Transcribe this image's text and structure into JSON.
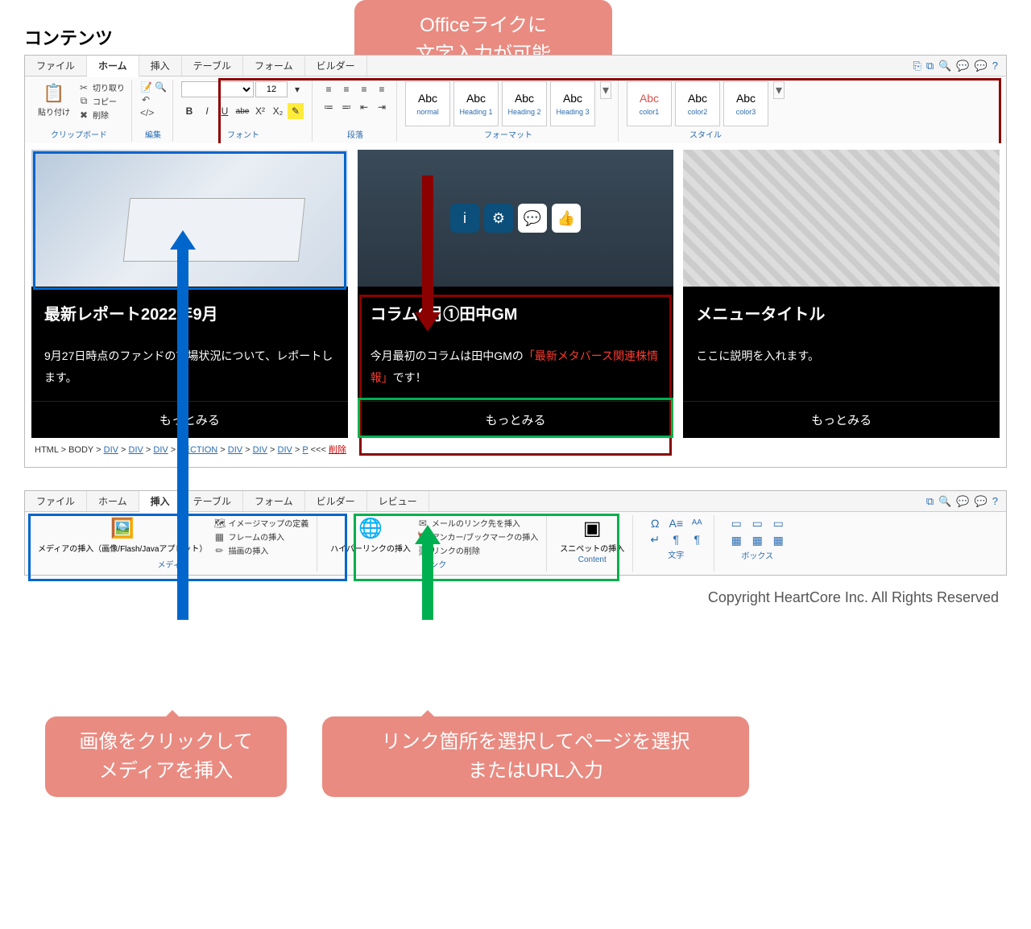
{
  "colors": {
    "red": "#8b0000",
    "blue": "#0066cc",
    "green": "#00b050",
    "callout": "#e98b81",
    "link": "#2b6cb0"
  },
  "section_title": "コンテンツ",
  "ribbon1": {
    "tabs": [
      "ファイル",
      "ホーム",
      "挿入",
      "テーブル",
      "フォーム",
      "ビルダー"
    ],
    "active_tab": 1,
    "clipboard": {
      "paste": "貼り付け",
      "cut": "切り取り",
      "copy": "コピー",
      "delete": "削除",
      "label": "クリップボード"
    },
    "edit": {
      "label": "編集"
    },
    "font": {
      "size": "12",
      "label": "フォント",
      "buttons": [
        "B",
        "I",
        "U",
        "abe",
        "X²",
        "X₂",
        "✎"
      ]
    },
    "paragraph": {
      "label": "段落"
    },
    "format": {
      "label": "フォーマット",
      "items": [
        {
          "abc": "Abc",
          "lbl": "normal"
        },
        {
          "abc": "Abc",
          "lbl": "Heading 1"
        },
        {
          "abc": "Abc",
          "lbl": "Heading 2"
        },
        {
          "abc": "Abc",
          "lbl": "Heading 3"
        }
      ]
    },
    "style": {
      "label": "スタイル",
      "items": [
        {
          "abc": "Abc",
          "lbl": "color1",
          "color": "#d9534f"
        },
        {
          "abc": "Abc",
          "lbl": "color2",
          "color": "#333"
        },
        {
          "abc": "Abc",
          "lbl": "color3",
          "color": "#333"
        }
      ]
    }
  },
  "cards": [
    {
      "title": "最新レポート2022年9月",
      "desc_pre": "9月27日時点のファンドの市場状況について、レポートします。",
      "cta": "もっとみる"
    },
    {
      "title": "コラム9月①田中GM",
      "desc_pre": "今月最初のコラムは田中GMの",
      "desc_hl": "「最新メタバース関連株情報」",
      "desc_post": "です！",
      "cta": "もっとみる"
    },
    {
      "title": "メニュータイトル",
      "desc_pre": "ここに説明を入れます。",
      "cta": "もっとみる"
    }
  ],
  "breadcrumb": {
    "parts": [
      "HTML",
      "BODY",
      "DIV",
      "DIV",
      "DIV",
      "SECTION",
      "DIV",
      "DIV",
      "DIV",
      "P"
    ],
    "sep": " > ",
    "suffix": " <<< ",
    "del": "削除"
  },
  "ribbon2": {
    "tabs": [
      "ファイル",
      "ホーム",
      "挿入",
      "テーブル",
      "フォーム",
      "ビルダー",
      "レビュー"
    ],
    "active_tab": 2,
    "media": {
      "btn": "メディアの挿入（画像/Flash/Javaアプレット）",
      "items": [
        "イメージマップの定義",
        "フレームの挿入",
        "描画の挿入"
      ],
      "label": "メディア"
    },
    "link": {
      "btn": "ハイパーリンクの挿入",
      "items": [
        "メールのリンク先を挿入",
        "アンカー/ブックマークの挿入",
        "リンクの削除"
      ],
      "label": "リンク"
    },
    "snippet": {
      "btn": "スニペットの挿入",
      "label": "Content"
    },
    "text": {
      "label": "文字"
    },
    "box": {
      "label": "ボックス"
    }
  },
  "callouts": {
    "top": "Officeライクに\n文字入力が可能",
    "bl": "画像をクリックして\nメディアを挿入",
    "br": "リンク箇所を選択してページを選択\nまたはURL入力"
  },
  "copyright": "Copyright HeartCore Inc. All Rights Reserved"
}
